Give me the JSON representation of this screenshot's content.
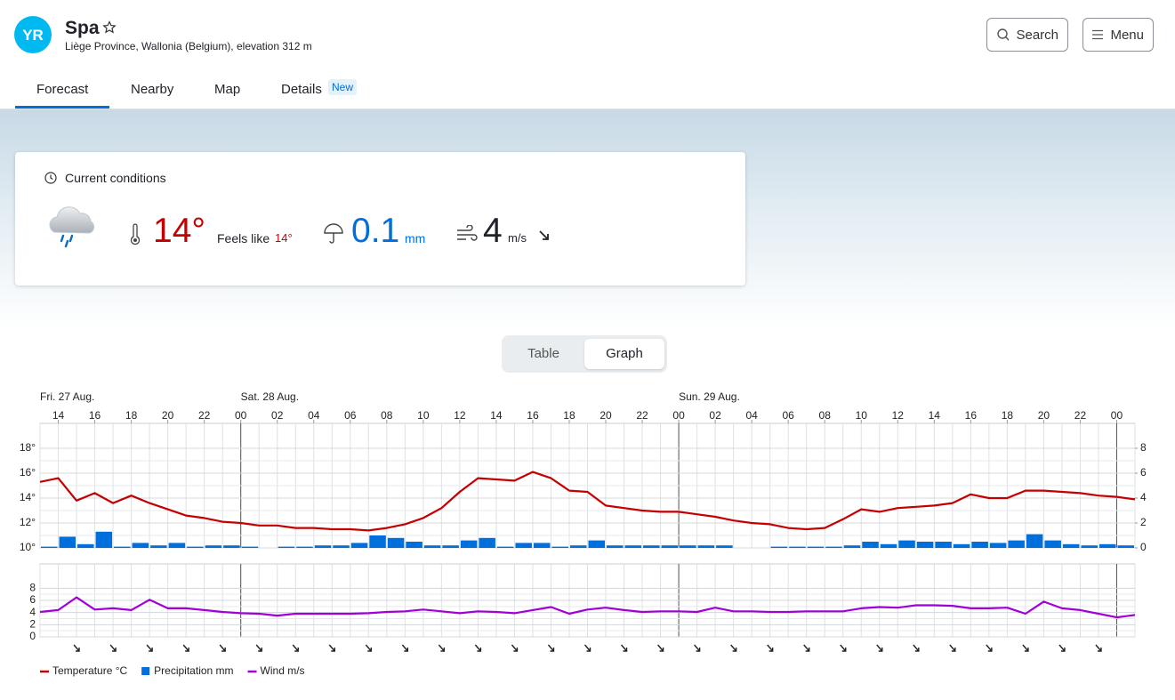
{
  "header": {
    "logo": "YR",
    "title": "Spa",
    "subtitle": "Liège Province, Wallonia (Belgium), elevation 312 m",
    "search": "Search",
    "menu": "Menu"
  },
  "tabs": {
    "items": [
      "Forecast",
      "Nearby",
      "Map",
      "Details"
    ],
    "badge": "New"
  },
  "current": {
    "heading": "Current conditions",
    "temperature": "14°",
    "feels_like_label": "Feels like",
    "feels_like": "14°",
    "precipitation": "0.1",
    "precipitation_unit": "mm",
    "wind": "4",
    "wind_unit": "m/s"
  },
  "view_toggle": [
    "Table",
    "Graph"
  ],
  "chart_data": {
    "type": "line",
    "days": [
      "Fri. 27 Aug.",
      "Sat. 28 Aug.",
      "Sun. 29 Aug."
    ],
    "categories": [
      null,
      "14",
      null,
      "16",
      null,
      "18",
      null,
      "20",
      null,
      "22",
      null,
      "00",
      null,
      "02",
      null,
      "04",
      null,
      "06",
      null,
      "08",
      null,
      "10",
      null,
      "12",
      null,
      "14",
      null,
      "16",
      null,
      "18",
      null,
      "20",
      null,
      "22",
      null,
      "00",
      null,
      "02",
      null,
      "04",
      null,
      "06",
      null,
      "08",
      null,
      "10",
      null,
      "12",
      null,
      "14",
      null,
      "16",
      null,
      "18",
      null,
      "20",
      null,
      "22",
      null,
      "00",
      null
    ],
    "series": [
      {
        "name": "Temperature °C",
        "color": "#c60000",
        "values": [
          15.3,
          15.6,
          13.8,
          14.4,
          13.6,
          14.2,
          13.6,
          13.1,
          12.6,
          12.4,
          12.1,
          12.0,
          11.8,
          11.8,
          11.6,
          11.6,
          11.5,
          11.5,
          11.4,
          11.6,
          11.9,
          12.4,
          13.2,
          14.5,
          15.6,
          15.5,
          15.4,
          16.1,
          15.6,
          14.6,
          14.5,
          13.4,
          13.2,
          13.0,
          12.9,
          12.9,
          12.7,
          12.5,
          12.2,
          12.0,
          11.9,
          11.6,
          11.5,
          11.6,
          12.3,
          13.1,
          12.9,
          13.2,
          13.3,
          13.4,
          13.6,
          14.3,
          14.0,
          14.0,
          14.6,
          14.6,
          14.5,
          14.4,
          14.2,
          14.1,
          13.9
        ]
      },
      {
        "name": "Precipitation mm",
        "color": "#006edb",
        "type": "bar",
        "axis": "y2",
        "values": [
          0.1,
          0.9,
          0.3,
          1.3,
          0.1,
          0.4,
          0.2,
          0.4,
          0.1,
          0.2,
          0.2,
          0.1,
          0,
          0.1,
          0.1,
          0.2,
          0.2,
          0.4,
          1.0,
          0.8,
          0.5,
          0.2,
          0.2,
          0.6,
          0.8,
          0.1,
          0.4,
          0.4,
          0.1,
          0.2,
          0.6,
          0.2,
          0.2,
          0.2,
          0.2,
          0.2,
          0.2,
          0.2,
          0,
          0,
          0.1,
          0.1,
          0.1,
          0.1,
          0.2,
          0.5,
          0.3,
          0.6,
          0.5,
          0.5,
          0.3,
          0.5,
          0.4,
          0.6,
          1.1,
          0.6,
          0.3,
          0.2,
          0.3,
          0.2,
          null
        ]
      },
      {
        "name": "Wind m/s",
        "color": "#a100d6",
        "axis": "y3",
        "values": [
          4.1,
          4.4,
          6.5,
          4.5,
          4.7,
          4.4,
          6.1,
          4.7,
          4.7,
          4.4,
          4.1,
          3.9,
          3.8,
          3.5,
          3.8,
          3.8,
          3.8,
          3.8,
          3.9,
          4.1,
          4.2,
          4.5,
          4.2,
          3.9,
          4.2,
          4.1,
          3.9,
          4.4,
          4.9,
          3.8,
          4.5,
          4.8,
          4.4,
          4.1,
          4.2,
          4.2,
          4.1,
          4.8,
          4.2,
          4.2,
          4.1,
          4.1,
          4.2,
          4.2,
          4.2,
          4.7,
          4.9,
          4.8,
          5.2,
          5.2,
          5.1,
          4.7,
          4.7,
          4.8,
          3.8,
          5.8,
          4.7,
          4.4,
          3.8,
          3.2,
          3.6
        ]
      }
    ],
    "ylim": [
      10,
      20
    ],
    "yticks": [
      {
        "value": 10,
        "label": "10°"
      },
      {
        "value": 12,
        "label": "12°"
      },
      {
        "value": 14,
        "label": "14°"
      },
      {
        "value": 16,
        "label": "16°"
      },
      {
        "value": 18,
        "label": "18°"
      }
    ],
    "y2lim": [
      0,
      10
    ],
    "y2ticks": [
      0,
      2,
      4,
      6,
      8
    ],
    "y3lim": [
      0,
      12
    ],
    "y3ticks": [
      0,
      2,
      4,
      6,
      8
    ],
    "grid": true
  }
}
